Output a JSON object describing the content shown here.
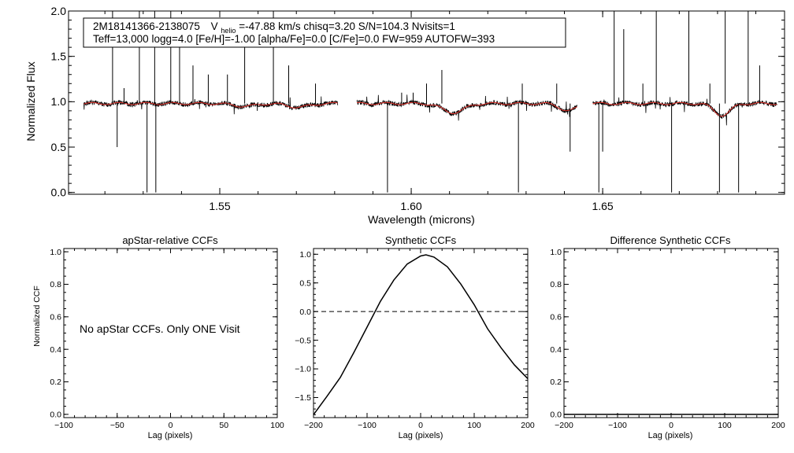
{
  "header": {
    "star_id": "2M18141366-2138075",
    "vhelio_prefix": "V",
    "vhelio_sub": "helio",
    "line1_rest": "=-47.88 km/s  chisq=3.20  S/N=104.3  Nvisits=1",
    "line2": "Teff=13,000 logg=4.0 [Fe/H]=-1.00 [alpha/Fe]=0.0 [C/Fe]=0.0 FW=959 AUTOFW=393"
  },
  "colors": {
    "observed": "#000000",
    "model": "#e8352e"
  },
  "chart_data": [
    {
      "id": "spectrum",
      "type": "line",
      "xlabel": "Wavelength (microns)",
      "ylabel": "Normalized Flux",
      "xlim": [
        1.5105,
        1.6975
      ],
      "ylim": [
        -0.02,
        2.0
      ],
      "xticks": [
        1.55,
        1.6,
        1.65
      ],
      "xtick_labels": [
        "1.55",
        "1.60",
        "1.65"
      ],
      "yticks": [
        0.0,
        0.5,
        1.0,
        1.5,
        2.0
      ],
      "ytick_labels": [
        "0.0",
        "0.5",
        "1.0",
        "1.5",
        "2.0"
      ],
      "chip_ranges": [
        [
          1.5145,
          1.5808
        ],
        [
          1.5858,
          1.6433
        ],
        [
          1.6474,
          1.6955
        ]
      ],
      "continuum_level": 0.98,
      "absorption_features": [
        {
          "center": 1.5565,
          "depth": 0.03,
          "width": 0.004
        },
        {
          "center": 1.5705,
          "depth": 0.04,
          "width": 0.004
        },
        {
          "center": 1.611,
          "depth": 0.1,
          "width": 0.004
        },
        {
          "center": 1.641,
          "depth": 0.08,
          "width": 0.003
        },
        {
          "center": 1.6812,
          "depth": 0.13,
          "width": 0.003
        }
      ],
      "sky_lines": [
        {
          "x": 1.522,
          "y": 2.0
        },
        {
          "x": 1.5232,
          "y": 0.5
        },
        {
          "x": 1.525,
          "y": 1.15
        },
        {
          "x": 1.529,
          "y": 2.0
        },
        {
          "x": 1.531,
          "y": 0.0
        },
        {
          "x": 1.533,
          "y": 2.0
        },
        {
          "x": 1.5333,
          "y": 0.0
        },
        {
          "x": 1.5372,
          "y": 2.0
        },
        {
          "x": 1.5395,
          "y": 1.7
        },
        {
          "x": 1.543,
          "y": 1.4
        },
        {
          "x": 1.547,
          "y": 1.3
        },
        {
          "x": 1.552,
          "y": 1.3
        },
        {
          "x": 1.5565,
          "y": 1.9
        },
        {
          "x": 1.5598,
          "y": 0.9
        },
        {
          "x": 1.564,
          "y": 2.0
        },
        {
          "x": 1.568,
          "y": 1.4
        },
        {
          "x": 1.575,
          "y": 1.2
        },
        {
          "x": 1.5938,
          "y": 0.0
        },
        {
          "x": 1.5975,
          "y": 1.1
        },
        {
          "x": 1.6005,
          "y": 1.1
        },
        {
          "x": 1.604,
          "y": 1.2
        },
        {
          "x": 1.608,
          "y": 1.35
        },
        {
          "x": 1.628,
          "y": 0.0
        },
        {
          "x": 1.629,
          "y": 1.2
        },
        {
          "x": 1.638,
          "y": 1.2
        },
        {
          "x": 1.6415,
          "y": 0.45
        },
        {
          "x": 1.649,
          "y": 0.0
        },
        {
          "x": 1.65,
          "y": 0.45
        },
        {
          "x": 1.653,
          "y": 2.0
        },
        {
          "x": 1.6555,
          "y": 1.8
        },
        {
          "x": 1.6605,
          "y": 1.2
        },
        {
          "x": 1.664,
          "y": 2.0
        },
        {
          "x": 1.668,
          "y": 0.0
        },
        {
          "x": 1.6725,
          "y": 2.0
        },
        {
          "x": 1.678,
          "y": 1.2
        },
        {
          "x": 1.6805,
          "y": 0.0
        },
        {
          "x": 1.682,
          "y": 2.0
        },
        {
          "x": 1.6855,
          "y": 0.0
        },
        {
          "x": 1.688,
          "y": 2.0
        },
        {
          "x": 1.691,
          "y": 1.4
        }
      ]
    },
    {
      "id": "apstar-ccf",
      "type": "line",
      "title": "apStar-relative CCFs",
      "xlabel": "Lag (pixels)",
      "ylabel": "Normalized CCF",
      "xlim": [
        -100,
        100
      ],
      "ylim": [
        -0.02,
        1.02
      ],
      "xticks": [
        -100,
        -50,
        0,
        50,
        100
      ],
      "xtick_labels": [
        "−100",
        "−50",
        "0",
        "50",
        "100"
      ],
      "yticks": [
        0.0,
        0.2,
        0.4,
        0.6,
        0.8,
        1.0
      ],
      "ytick_labels": [
        "0.0",
        "0.2",
        "0.4",
        "0.6",
        "0.8",
        "1.0"
      ],
      "message": "No apStar CCFs.  Only ONE Visit"
    },
    {
      "id": "synthetic-ccf",
      "type": "line",
      "title": "Synthetic CCFs",
      "xlabel": "Lag (pixels)",
      "ylabel": "",
      "xlim": [
        -200,
        200
      ],
      "ylim": [
        -1.85,
        1.1
      ],
      "xticks": [
        -200,
        -100,
        0,
        100,
        200
      ],
      "xtick_labels": [
        "−200",
        "−100",
        "0",
        "100",
        "200"
      ],
      "yticks": [
        -1.5,
        -1.0,
        -0.5,
        0.0,
        0.5,
        1.0
      ],
      "ytick_labels": [
        "−1.5",
        "−1.0",
        "−0.5",
        "0.0",
        "0.5",
        "1.0"
      ],
      "reference_line": 0.0,
      "x": [
        -200,
        -175,
        -150,
        -125,
        -100,
        -75,
        -50,
        -25,
        0,
        10,
        25,
        50,
        75,
        100,
        125,
        150,
        175,
        200
      ],
      "y": [
        -1.8,
        -1.48,
        -1.15,
        -0.72,
        -0.27,
        0.18,
        0.55,
        0.83,
        0.97,
        0.99,
        0.95,
        0.78,
        0.48,
        0.12,
        -0.3,
        -0.63,
        -0.93,
        -1.17
      ]
    },
    {
      "id": "difference-ccf",
      "type": "line",
      "title": "Difference Synthetic CCFs",
      "xlabel": "Lag (pixels)",
      "ylabel": "",
      "xlim": [
        -200,
        200
      ],
      "ylim": [
        -0.02,
        1.02
      ],
      "xticks": [
        -200,
        -100,
        0,
        100,
        200
      ],
      "xtick_labels": [
        "−200",
        "−100",
        "0",
        "100",
        "200"
      ],
      "yticks": [
        0.0,
        0.2,
        0.4,
        0.6,
        0.8,
        1.0
      ],
      "ytick_labels": [
        "0.0",
        "0.2",
        "0.4",
        "0.6",
        "0.8",
        "1.0"
      ],
      "x": [
        -200,
        200
      ],
      "y": [
        0.0,
        0.0
      ]
    }
  ]
}
